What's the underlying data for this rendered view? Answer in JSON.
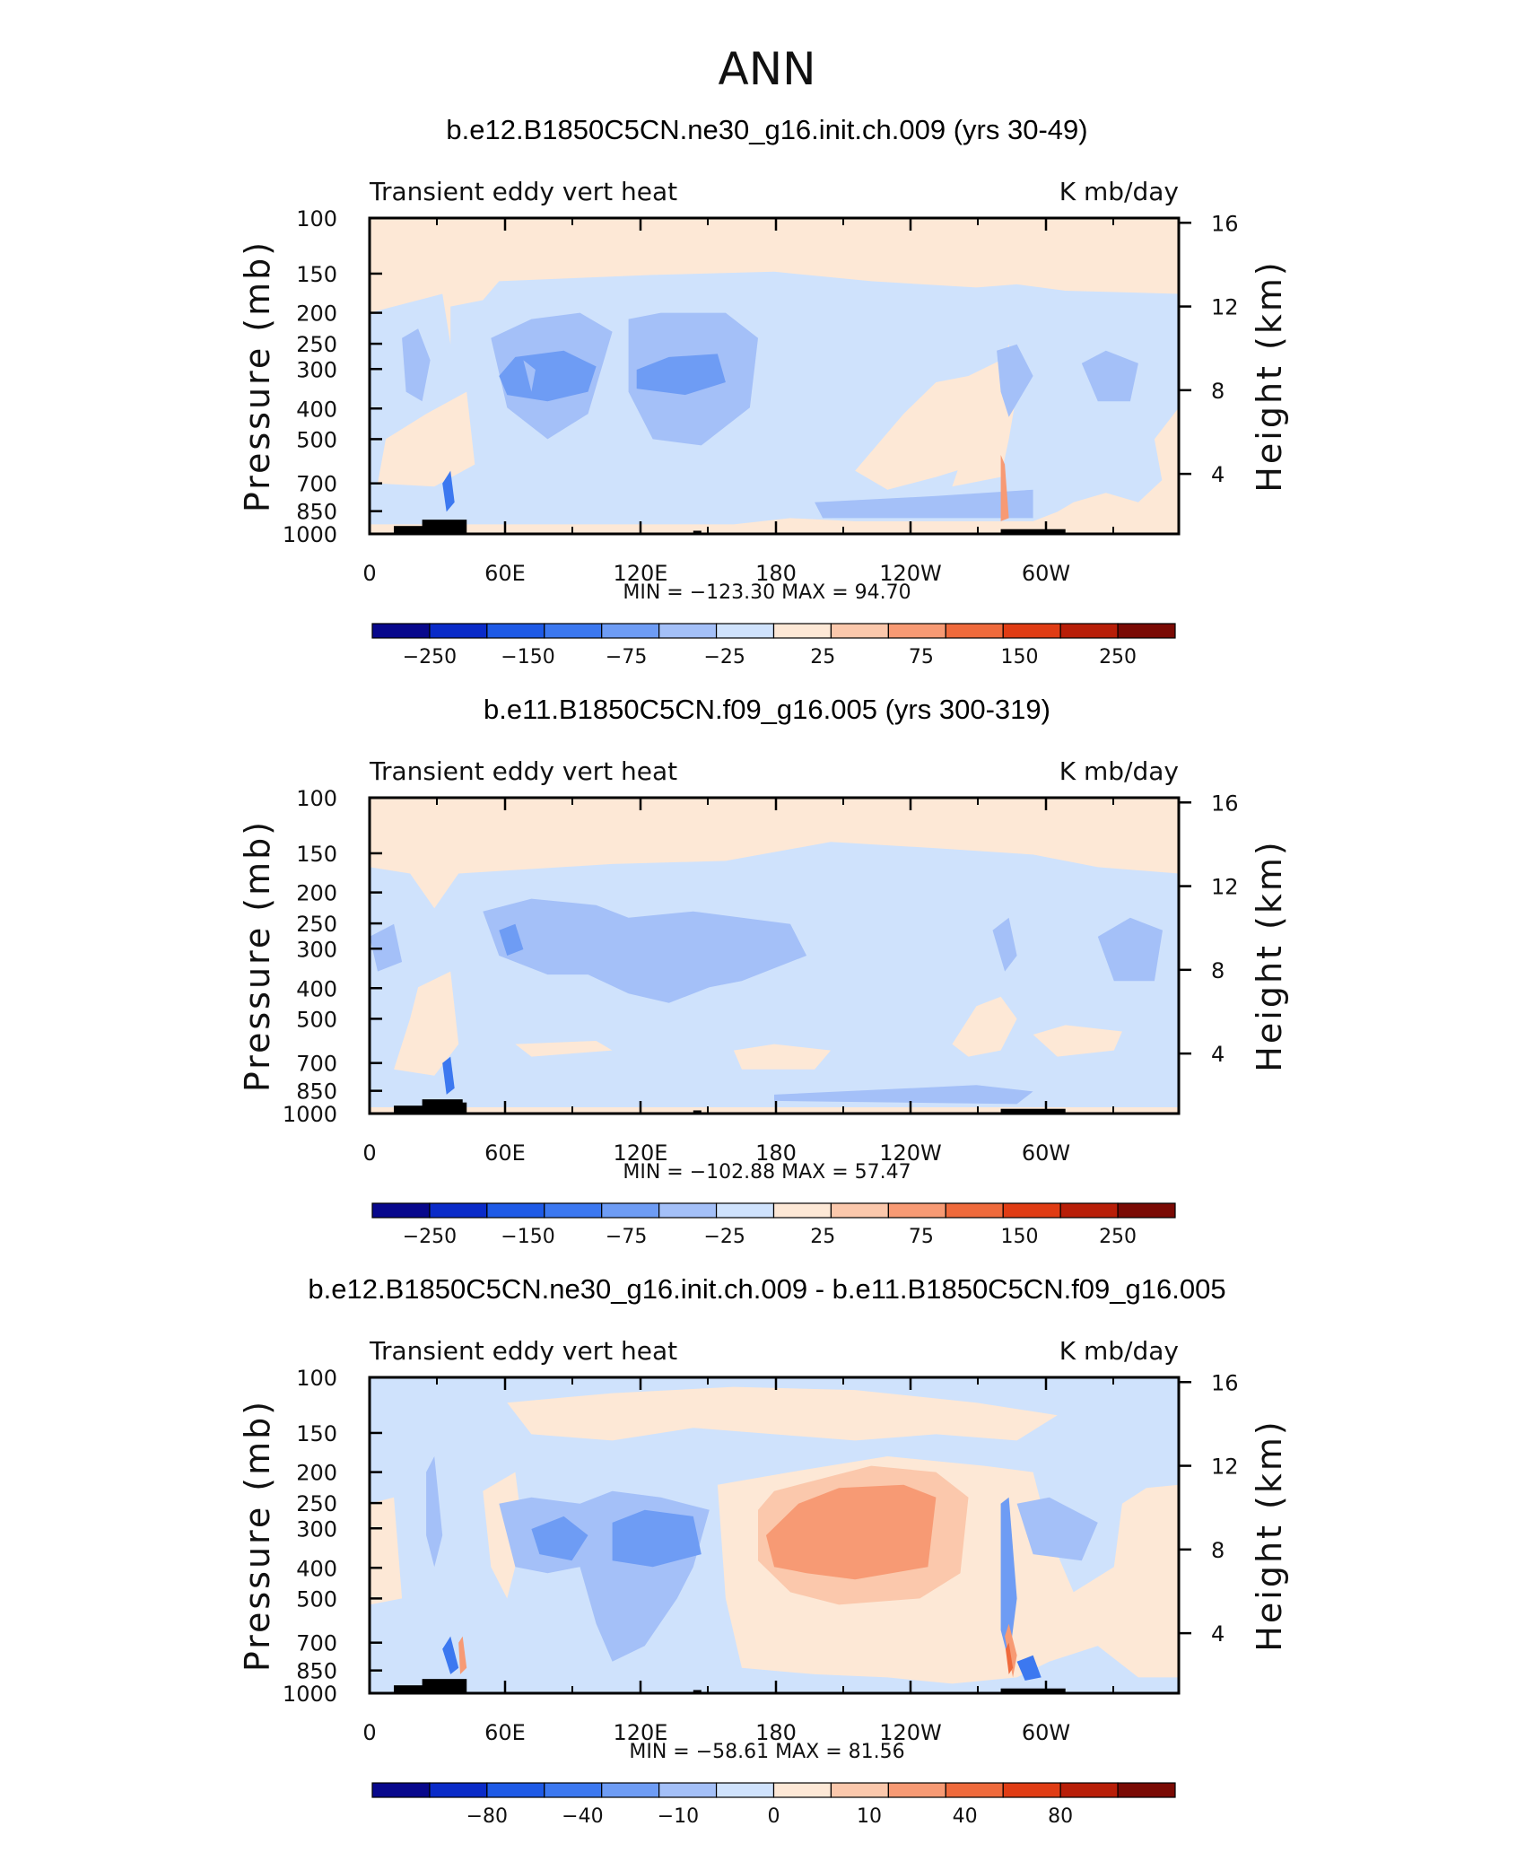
{
  "page_title": "ANN",
  "chart_data": [
    {
      "type": "heatmap",
      "title": "b.e12.B1850C5CN.ne30_g16.init.ch.009 (yrs 30-49)",
      "left_label": "Transient eddy vert heat",
      "right_label": "K mb/day",
      "ylabel": "Pressure (mb)",
      "ylabel_right": "Height (km)",
      "x_ticks": [
        "0",
        "60E",
        "120E",
        "180",
        "120W",
        "60W"
      ],
      "y_ticks": [
        "100",
        "150",
        "200",
        "250",
        "300",
        "400",
        "500",
        "700",
        "850",
        "1000"
      ],
      "y_ticks_right": [
        "16",
        "12",
        "8",
        "4"
      ],
      "stats": "MIN = −123.30   MAX =   94.70",
      "min": -123.3,
      "max": 94.7,
      "colorbar_labels": [
        "−250",
        "−150",
        "−75",
        "−25",
        "25",
        "75",
        "150",
        "250"
      ],
      "colorbar_colors": [
        "#08088c",
        "#0a2bc8",
        "#1e5ae6",
        "#3c78f0",
        "#6e9cf4",
        "#a4c0f8",
        "#cfe2fc",
        "#fde8d6",
        "#fbc8ac",
        "#f79a74",
        "#ef6a3c",
        "#e03c14",
        "#b81e08",
        "#7a0a04"
      ]
    },
    {
      "type": "heatmap",
      "title": "b.e11.B1850C5CN.f09_g16.005 (yrs 300-319)",
      "left_label": "Transient eddy vert heat",
      "right_label": "K mb/day",
      "ylabel": "Pressure (mb)",
      "ylabel_right": "Height (km)",
      "x_ticks": [
        "0",
        "60E",
        "120E",
        "180",
        "120W",
        "60W"
      ],
      "y_ticks": [
        "100",
        "150",
        "200",
        "250",
        "300",
        "400",
        "500",
        "700",
        "850",
        "1000"
      ],
      "y_ticks_right": [
        "16",
        "12",
        "8",
        "4"
      ],
      "stats": "MIN = −102.88   MAX =   57.47",
      "min": -102.88,
      "max": 57.47,
      "colorbar_labels": [
        "−250",
        "−150",
        "−75",
        "−25",
        "25",
        "75",
        "150",
        "250"
      ],
      "colorbar_colors": [
        "#08088c",
        "#0a2bc8",
        "#1e5ae6",
        "#3c78f0",
        "#6e9cf4",
        "#a4c0f8",
        "#cfe2fc",
        "#fde8d6",
        "#fbc8ac",
        "#f79a74",
        "#ef6a3c",
        "#e03c14",
        "#b81e08",
        "#7a0a04"
      ]
    },
    {
      "type": "heatmap",
      "title": "b.e12.B1850C5CN.ne30_g16.init.ch.009 - b.e11.B1850C5CN.f09_g16.005",
      "left_label": "Transient eddy vert heat",
      "right_label": "K mb/day",
      "ylabel": "Pressure (mb)",
      "ylabel_right": "Height (km)",
      "x_ticks": [
        "0",
        "60E",
        "120E",
        "180",
        "120W",
        "60W"
      ],
      "y_ticks": [
        "100",
        "150",
        "200",
        "250",
        "300",
        "400",
        "500",
        "700",
        "850",
        "1000"
      ],
      "y_ticks_right": [
        "16",
        "12",
        "8",
        "4"
      ],
      "stats": "MIN = −58.61   MAX =   81.56",
      "min": -58.61,
      "max": 81.56,
      "colorbar_labels": [
        "−80",
        "−40",
        "−10",
        "0",
        "10",
        "40",
        "80"
      ],
      "colorbar_colors": [
        "#08088c",
        "#0a2bc8",
        "#1e5ae6",
        "#3c78f0",
        "#6e9cf4",
        "#a4c0f8",
        "#cfe2fc",
        "#fde8d6",
        "#fbc8ac",
        "#f79a74",
        "#ef6a3c",
        "#e03c14",
        "#b81e08",
        "#7a0a04"
      ]
    }
  ]
}
